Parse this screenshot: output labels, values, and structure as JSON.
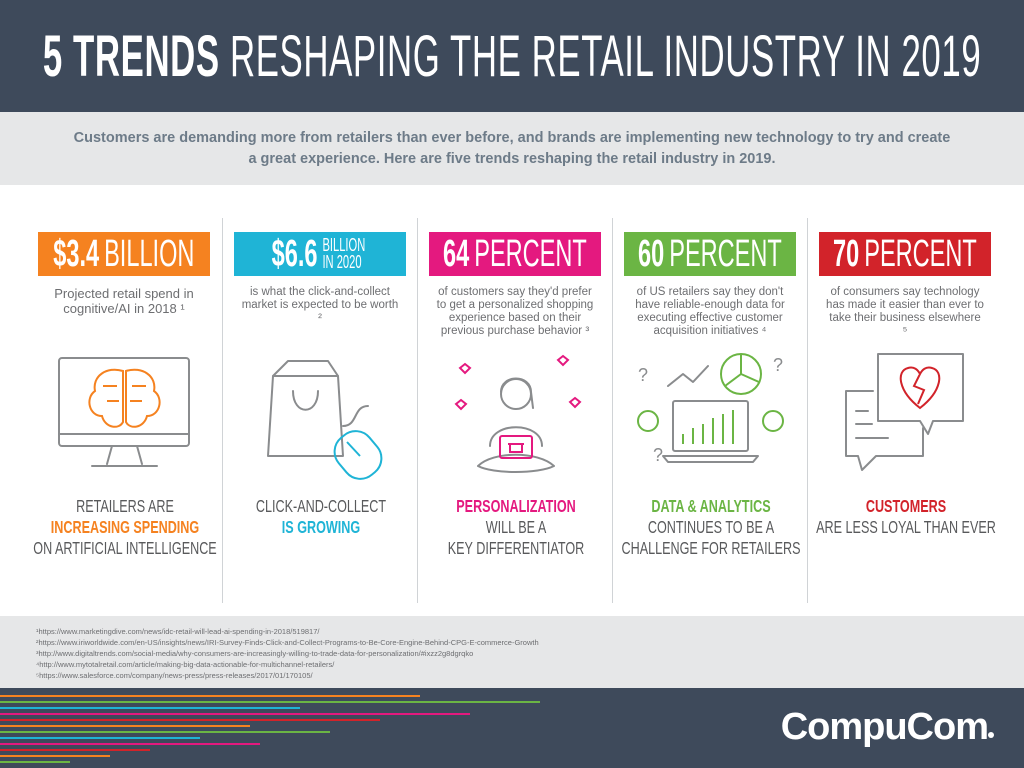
{
  "header": {
    "title_bold": "5 TRENDS",
    "title_rest": "RESHAPING THE RETAIL INDUSTRY IN 2019"
  },
  "intro": "Customers are demanding more from retailers than ever before, and brands are implementing new technology to try and create a great experience. Here are five trends reshaping the retail industry in 2019.",
  "trends": [
    {
      "stat_number": "$3.4",
      "stat_unit": "BILLION",
      "description": "Projected retail spend in cognitive/AI in 2018 ¹",
      "headline": [
        "RETAILERS ARE",
        "INCREASING SPENDING",
        "ON ARTIFICIAL INTELLIGENCE"
      ]
    },
    {
      "stat_number": "$6.6",
      "stat_unit": "BILLION IN 2020",
      "description": "is what the click-and-collect market is expected to be worth ²",
      "headline": [
        "CLICK-AND-COLLECT",
        "IS GROWING"
      ]
    },
    {
      "stat_number": "64",
      "stat_unit": "PERCENT",
      "description": "of customers say they'd prefer to get a personalized shopping experience based on their previous purchase behavior ³",
      "headline": [
        "PERSONALIZATION",
        "WILL BE A",
        "KEY DIFFERENTIATOR"
      ]
    },
    {
      "stat_number": "60",
      "stat_unit": "PERCENT",
      "description": "of US retailers say they don't have reliable-enough data for executing effective customer acquisition initiatives ⁴",
      "headline": [
        "DATA & ANALYTICS",
        "CONTINUES TO BE A",
        "CHALLENGE FOR RETAILERS"
      ]
    },
    {
      "stat_number": "70",
      "stat_unit": "PERCENT",
      "description": "of consumers say technology has made it easier than ever to take their business elsewhere ⁵",
      "headline": [
        "CUSTOMERS",
        "ARE LESS LOYAL THAN EVER"
      ]
    }
  ],
  "footnotes": [
    "¹https://www.marketingdive.com/news/idc-retail-will-lead-ai-spending-in-2018/519817/",
    "²https://www.iriworldwide.com/en-US/insights/news/IRI-Survey-Finds-Click-and-Collect-Programs-to-Be-Core-Engine-Behind-CPG-E-commerce-Growth",
    "³http://www.digitaltrends.com/social-media/why-consumers-are-increasingly-willing-to-trade-data-for-personalization/#ixzz2g8dgrqko",
    "⁴http://www.mytotalretail.com/article/making-big-data-actionable-for-multichannel-retailers/",
    "⁵https://www.salesforce.com/company/news-press/press-releases/2017/01/170105/"
  ],
  "logo": "CompuCom"
}
